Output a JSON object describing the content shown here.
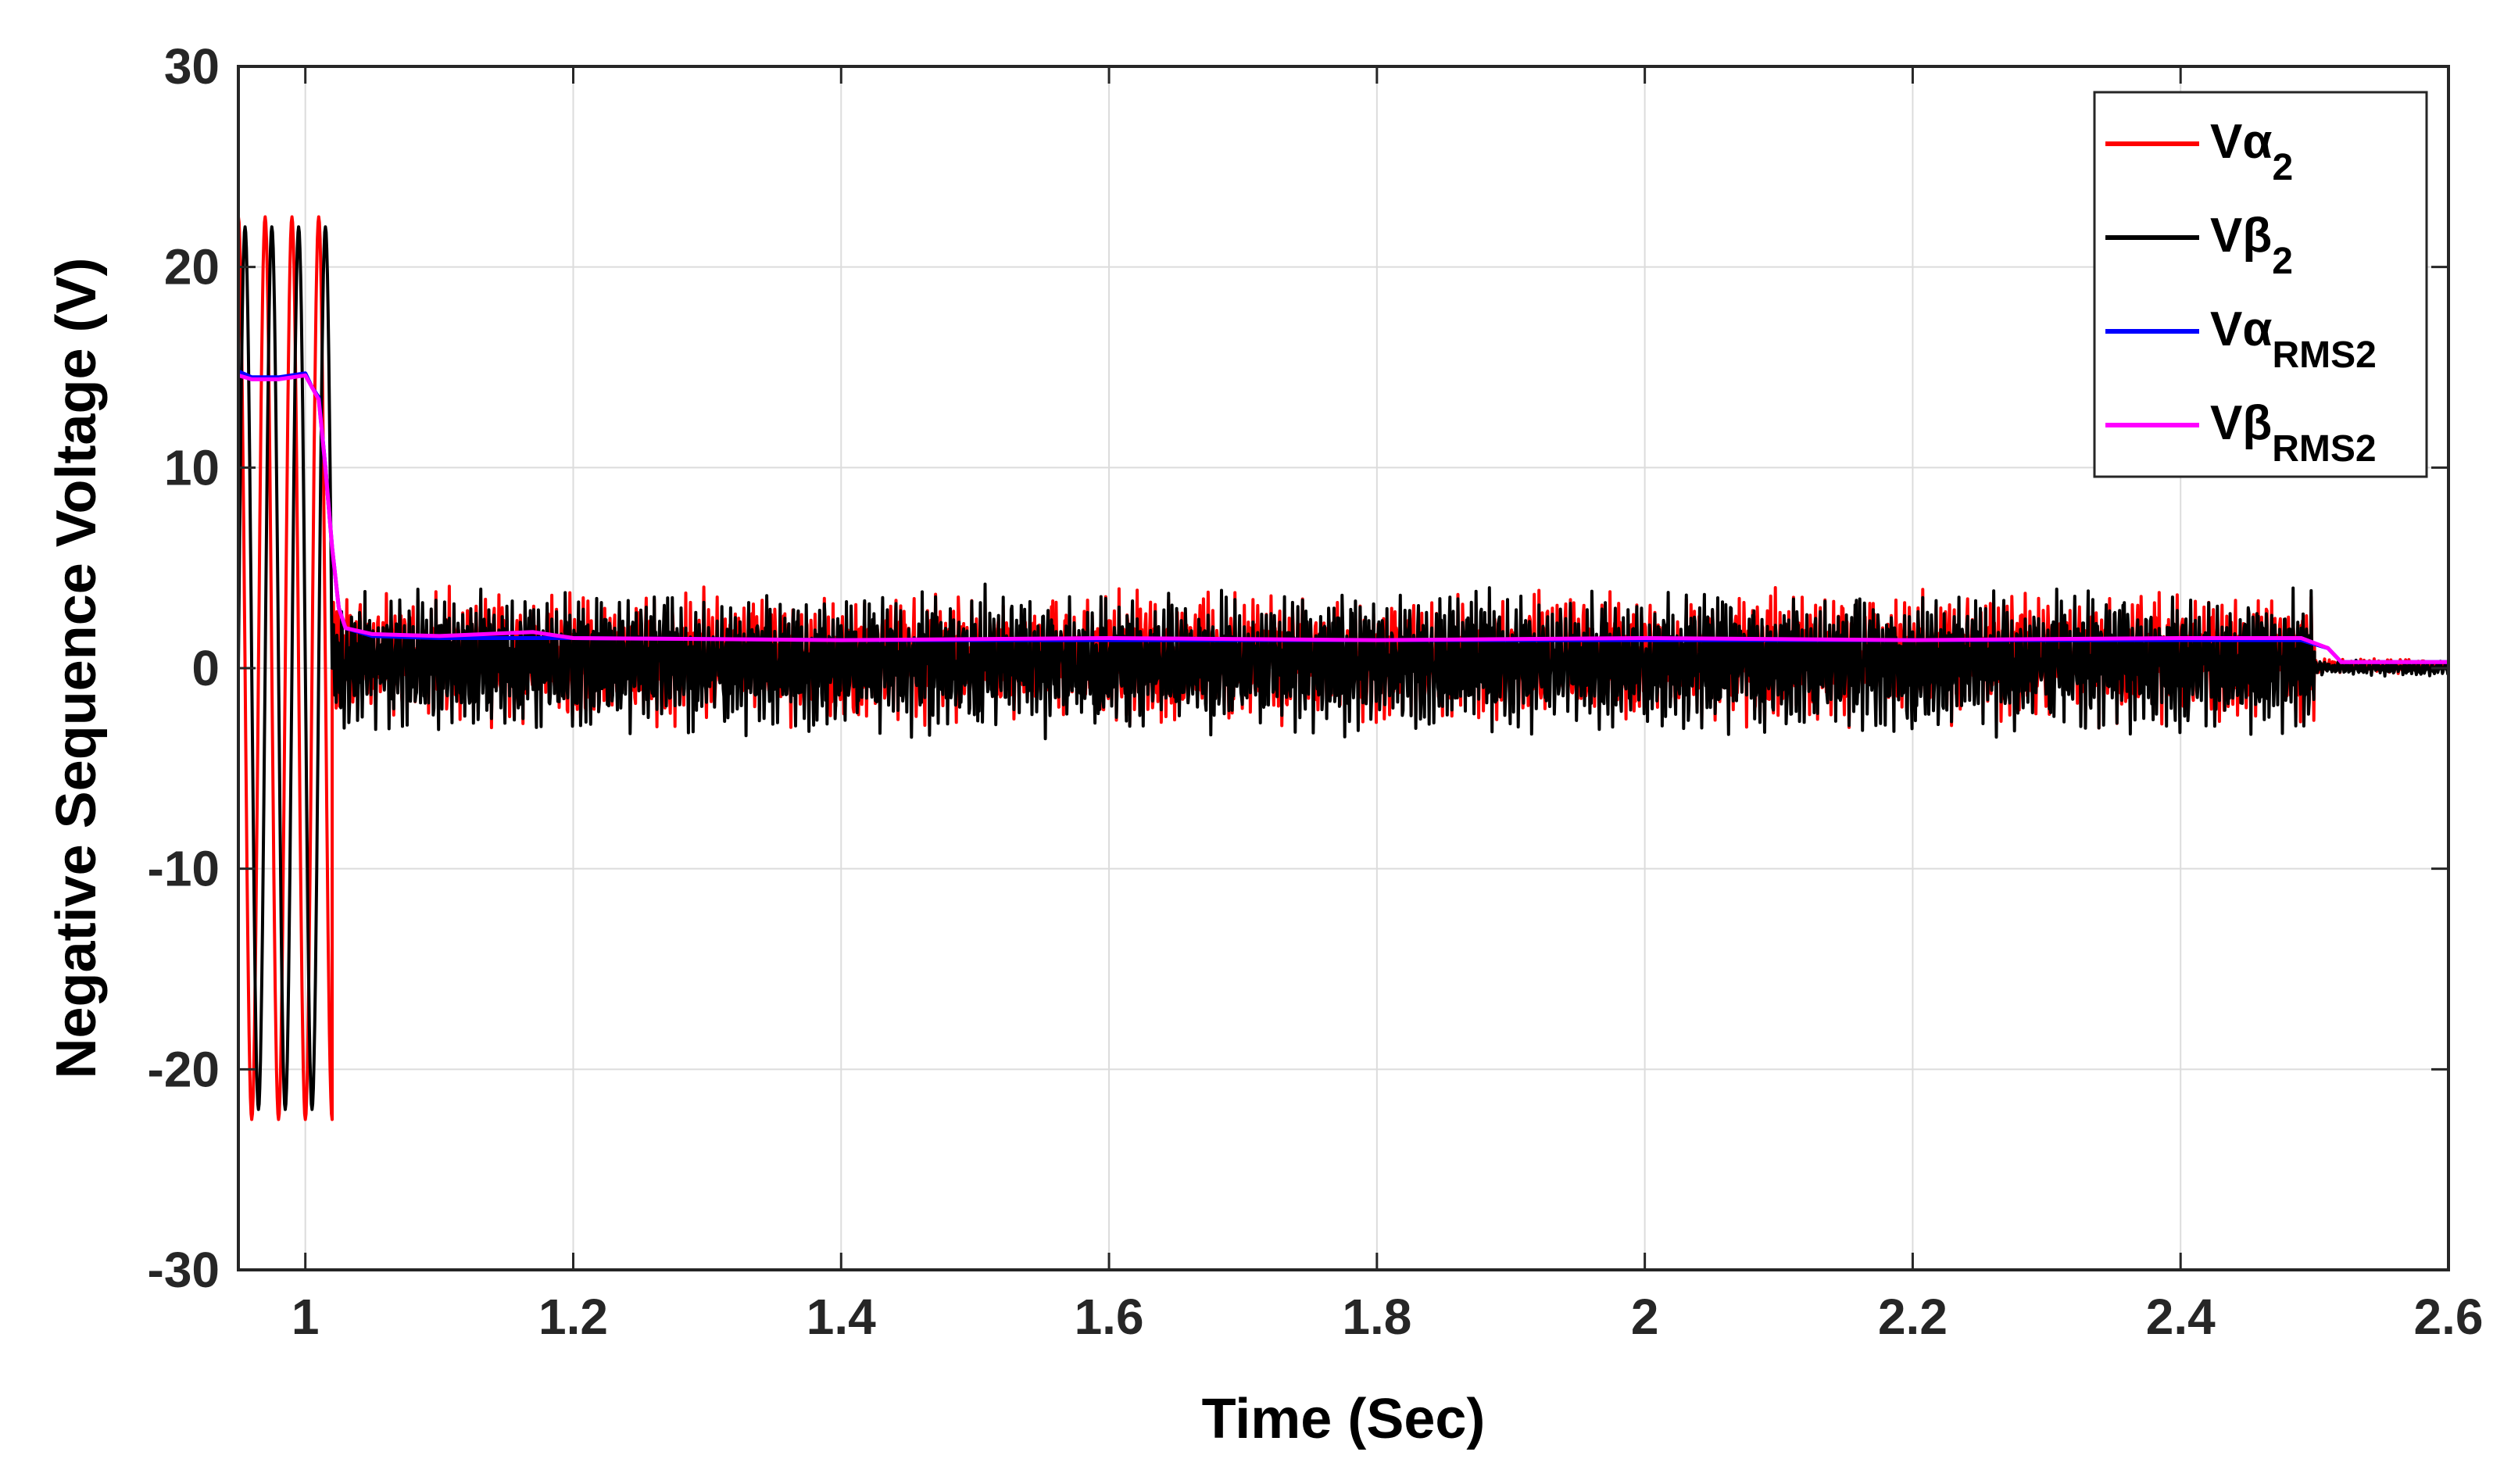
{
  "chart_data": {
    "type": "line",
    "xlabel": "Time (Sec)",
    "ylabel": "Negative Sequence Voltage (V)",
    "xlim": [
      0.95,
      2.6
    ],
    "ylim": [
      -30,
      30
    ],
    "x_ticks": [
      1,
      1.2,
      1.4,
      1.6,
      1.8,
      2,
      2.2,
      2.4,
      2.6
    ],
    "x_tick_labels": [
      "1",
      "1.2",
      "1.4",
      "1.6",
      "1.8",
      "2",
      "2.2",
      "2.4",
      "2.6"
    ],
    "y_ticks": [
      -30,
      -20,
      -10,
      0,
      10,
      20,
      30
    ],
    "y_tick_labels": [
      "-30",
      "-20",
      "-10",
      "0",
      "10",
      "20",
      "30"
    ],
    "grid": true,
    "legend_position": "top-right",
    "legend": [
      {
        "base": "Vα",
        "sub": "2",
        "color": "#ff0000"
      },
      {
        "base": "Vβ",
        "sub": "2",
        "color": "#000000"
      },
      {
        "base": "Vα",
        "sub": "RMS2",
        "color": "#0000ff"
      },
      {
        "base": "Vβ",
        "sub": "RMS2",
        "color": "#ff00ff"
      }
    ],
    "series": [
      {
        "key": "valpha2",
        "color": "#ff0000",
        "segments": [
          {
            "x": [
              0.95,
              1.02
            ],
            "freq_hz": 50,
            "amp": [
              22.5,
              22.5
            ],
            "phase_deg": 90
          },
          {
            "x": [
              1.02,
              2.5
            ],
            "osc_freq_hz": 300,
            "mean": 0.5,
            "amp": 2.6
          },
          {
            "x": [
              2.5,
              2.6
            ],
            "osc_freq_hz": 300,
            "mean": 0.1,
            "amp": 0.3
          }
        ]
      },
      {
        "key": "vbeta2",
        "color": "#000000",
        "segments": [
          {
            "x": [
              0.95,
              1.02
            ],
            "freq_hz": 50,
            "amp": [
              22,
              22
            ],
            "phase_deg": 0
          },
          {
            "x": [
              1.02,
              2.5
            ],
            "osc_freq_hz": 300,
            "mean": 0.3,
            "amp": 2.8
          },
          {
            "x": [
              2.5,
              2.6
            ],
            "osc_freq_hz": 300,
            "mean": 0.0,
            "amp": 0.3
          }
        ]
      },
      {
        "key": "valpha_rms2",
        "color": "#0000ff",
        "x": [
          0.95,
          0.96,
          0.98,
          1.0,
          1.005,
          1.01,
          1.015,
          1.02,
          1.025,
          1.03,
          1.05,
          1.1,
          1.2,
          1.4,
          1.6,
          1.8,
          2.0,
          2.2,
          2.4,
          2.49,
          2.51,
          2.52,
          2.6
        ],
        "y": [
          14.8,
          14.5,
          14.5,
          14.7,
          14.0,
          13.5,
          10.0,
          6.0,
          3.0,
          2.0,
          1.6,
          1.5,
          1.5,
          1.4,
          1.4,
          1.4,
          1.4,
          1.4,
          1.4,
          1.4,
          1.0,
          0.3,
          0.3
        ]
      },
      {
        "key": "vbeta_rms2",
        "color": "#ff00ff",
        "x": [
          0.95,
          0.96,
          0.98,
          1.0,
          1.005,
          1.01,
          1.015,
          1.02,
          1.025,
          1.03,
          1.05,
          1.1,
          1.17,
          1.2,
          1.4,
          1.6,
          1.8,
          2.0,
          2.2,
          2.4,
          2.49,
          2.51,
          2.52,
          2.6
        ],
        "y": [
          14.6,
          14.4,
          14.4,
          14.6,
          14.0,
          13.4,
          10.0,
          6.0,
          3.0,
          2.0,
          1.7,
          1.6,
          1.8,
          1.5,
          1.4,
          1.5,
          1.4,
          1.5,
          1.4,
          1.5,
          1.5,
          1.0,
          0.3,
          0.3
        ]
      }
    ]
  }
}
